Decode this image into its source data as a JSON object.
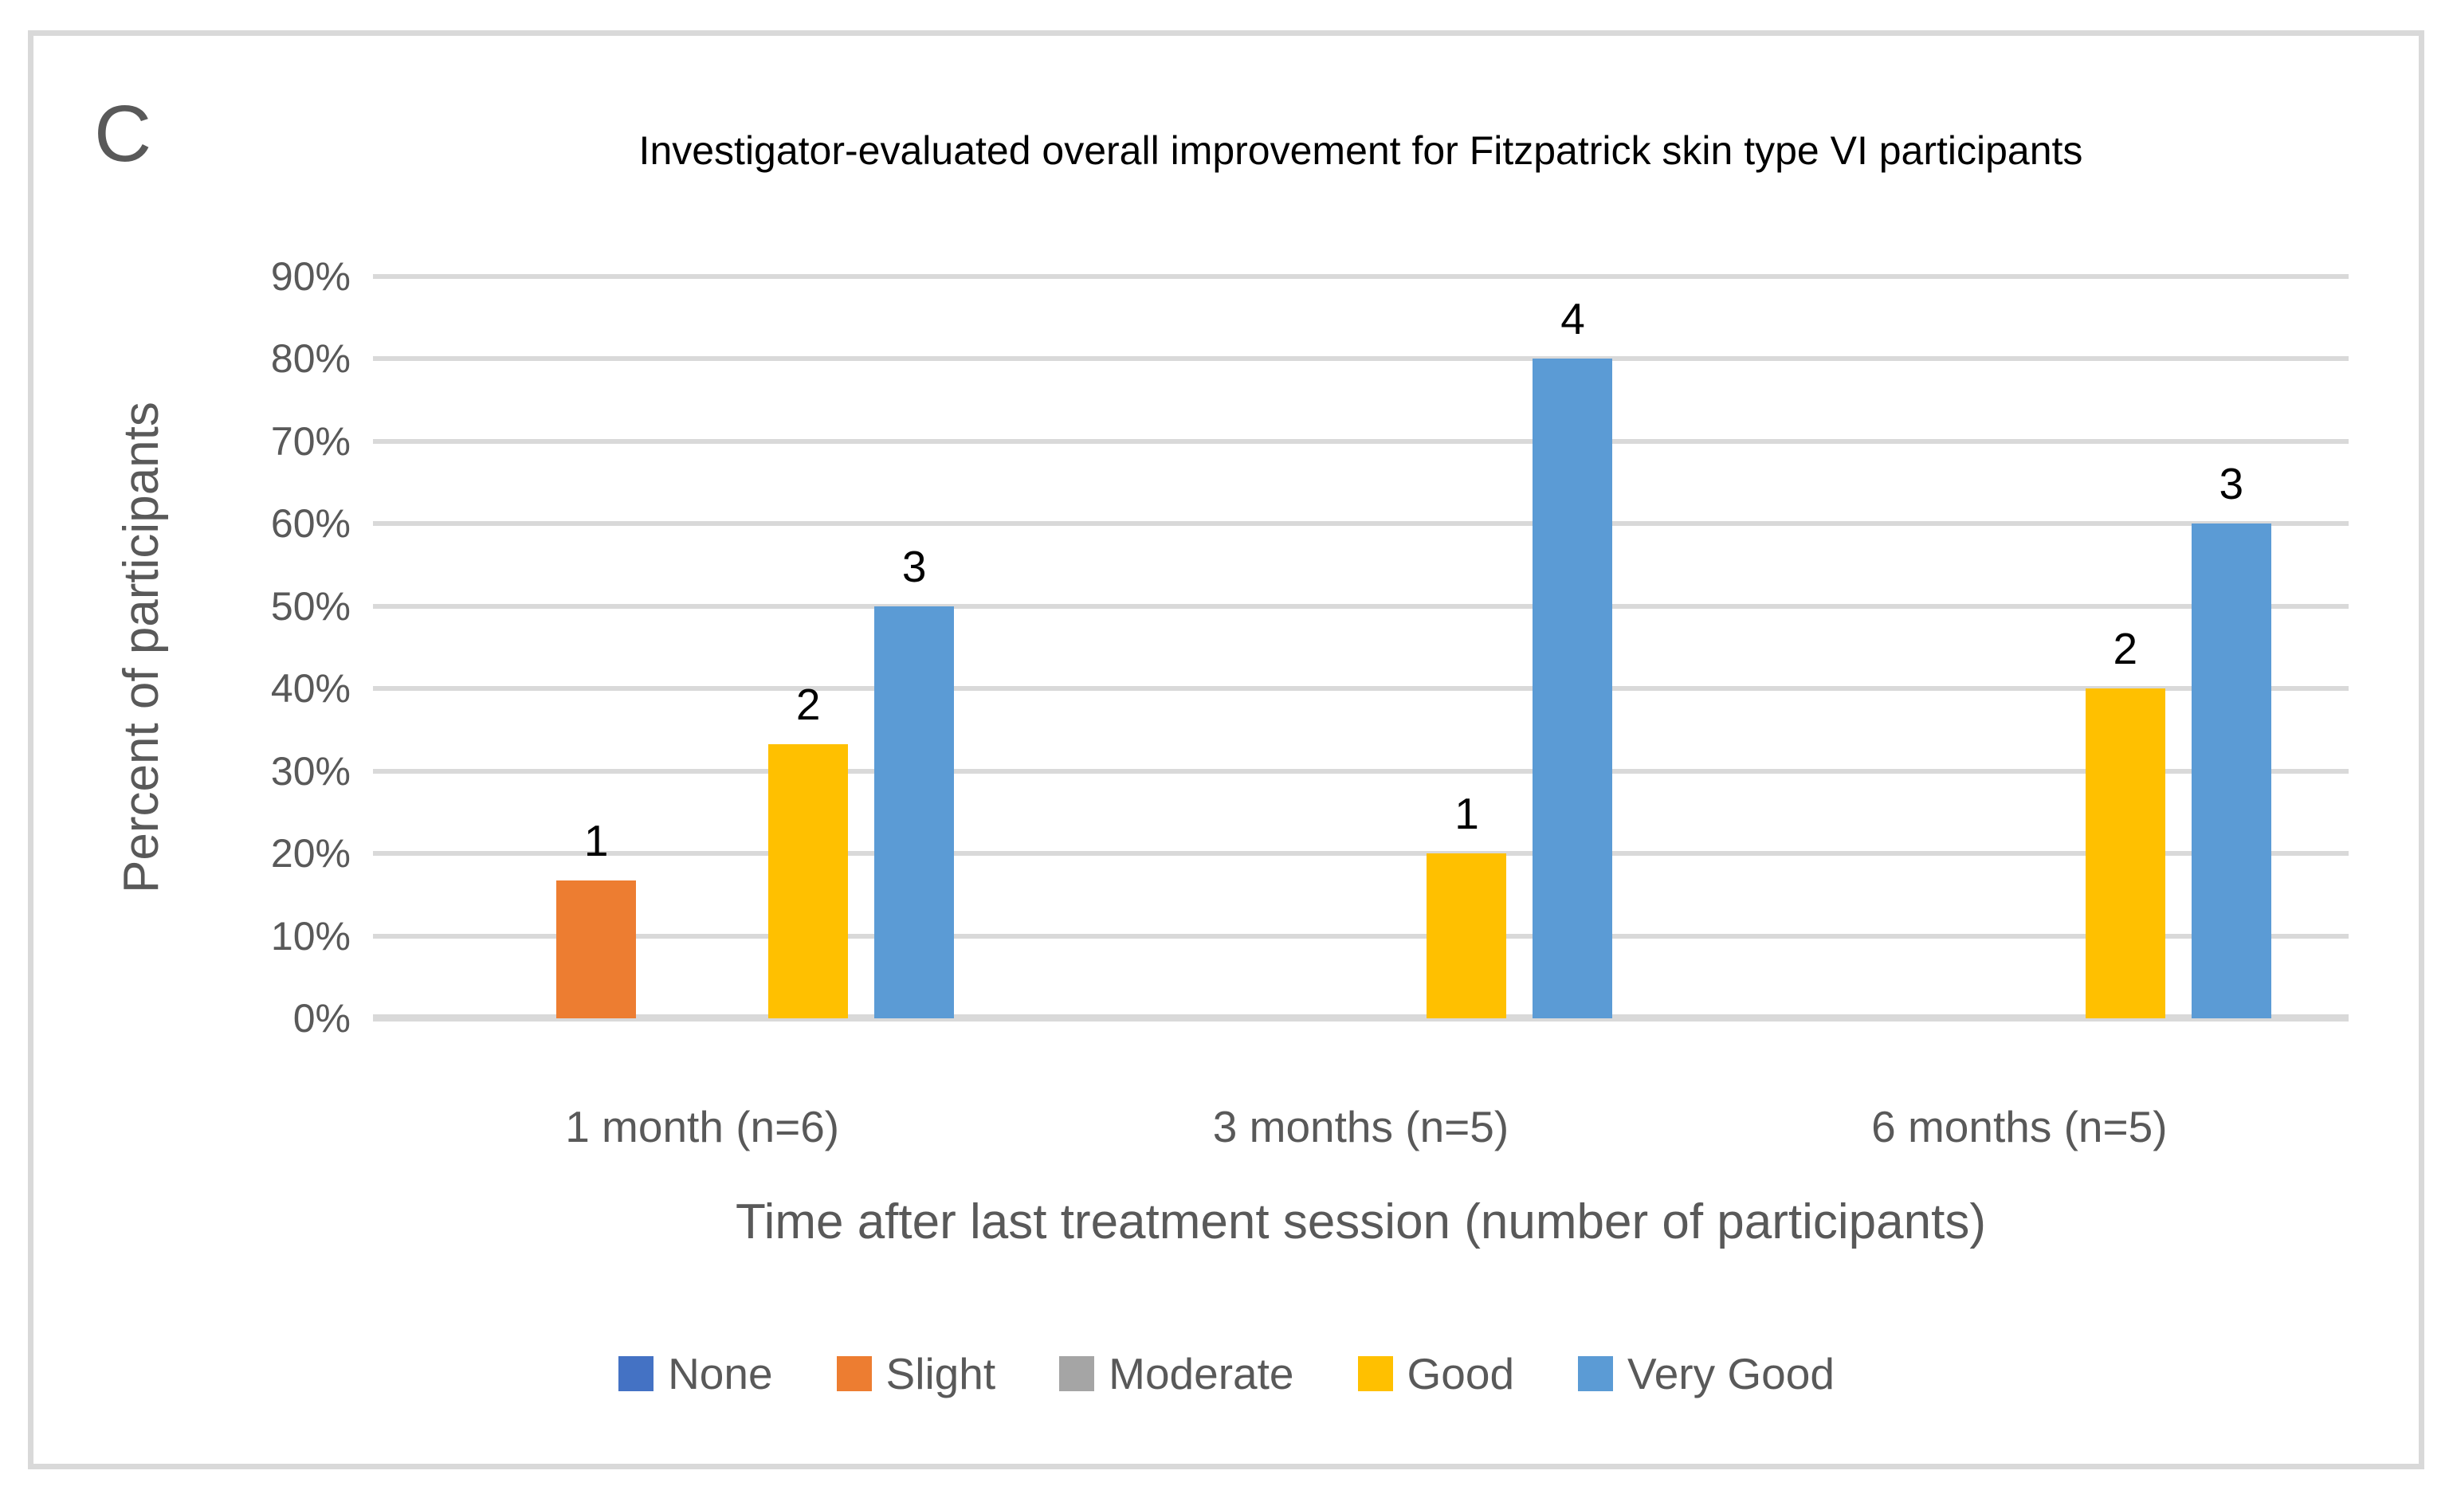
{
  "panel_label": "C",
  "colors": {
    "gridline": "#D9D9D9",
    "axis_line": "#D9D9D9",
    "frame_border": "#D9D9D9",
    "axis_text": "#595959",
    "title_text": "#000000",
    "data_label_text": "#000000"
  },
  "chart_data": {
    "type": "bar",
    "title": "Investigator-evaluated overall improvement for Fitzpatrick skin type VI participants",
    "xlabel": "Time after last treatment session (number of participants)",
    "ylabel": "Percent of participants",
    "ylim": [
      0,
      90
    ],
    "ytick_step": 10,
    "yticks": [
      "90%",
      "80%",
      "70%",
      "60%",
      "50%",
      "40%",
      "30%",
      "20%",
      "10%",
      "0%"
    ],
    "grid": true,
    "legend_position": "bottom",
    "categories": [
      "1 month (n=6)",
      "3 months (n=5)",
      "6 months (n=5)"
    ],
    "category_n": [
      6,
      5,
      5
    ],
    "series": [
      {
        "name": "None",
        "color": "#4472C4",
        "counts": [
          0,
          0,
          0
        ],
        "percent": [
          0,
          0,
          0
        ]
      },
      {
        "name": "Slight",
        "color": "#ED7D31",
        "counts": [
          1,
          0,
          0
        ],
        "percent": [
          16.7,
          0,
          0
        ]
      },
      {
        "name": "Moderate",
        "color": "#A5A5A5",
        "counts": [
          0,
          0,
          0
        ],
        "percent": [
          0,
          0,
          0
        ]
      },
      {
        "name": "Good",
        "color": "#FFC000",
        "counts": [
          2,
          1,
          2
        ],
        "percent": [
          33.3,
          20,
          40
        ]
      },
      {
        "name": "Very Good",
        "color": "#5B9BD5",
        "counts": [
          3,
          4,
          3
        ],
        "percent": [
          50,
          80,
          60
        ]
      }
    ],
    "data_label_note": "bars are annotated with participant counts"
  }
}
